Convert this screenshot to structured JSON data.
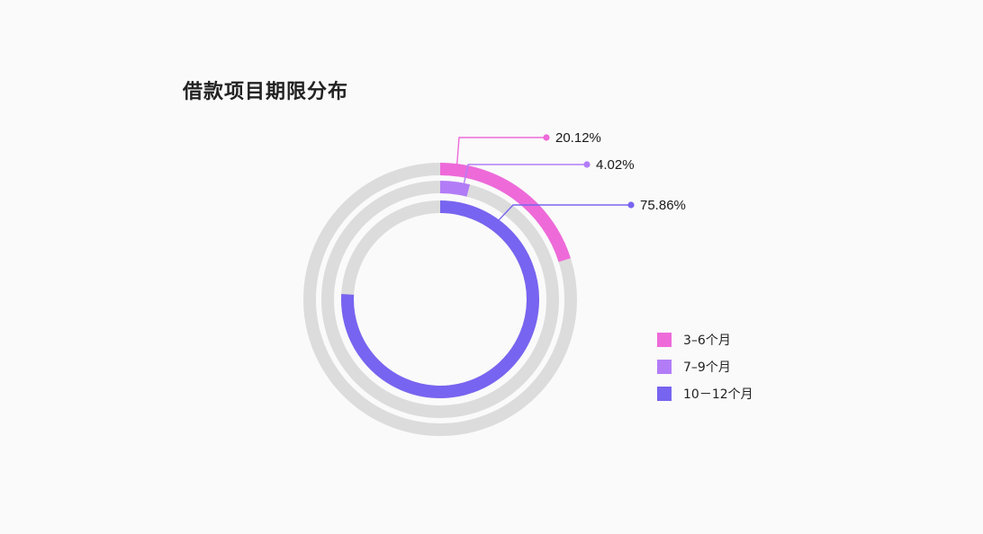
{
  "chart_data": {
    "type": "radial-bar",
    "title": "借款项目期限分布",
    "categories": [
      "3–6个月",
      "7–9个月",
      "10－12个月"
    ],
    "values": [
      20.12,
      4.02,
      75.86
    ],
    "value_labels": [
      "20.12%",
      "4.02%",
      "75.86%"
    ],
    "unit": "%",
    "colors": [
      "#ee6ad9",
      "#b27cf7",
      "#7764f0"
    ],
    "track_color": "#dcdcdc",
    "legend_position": "right"
  }
}
